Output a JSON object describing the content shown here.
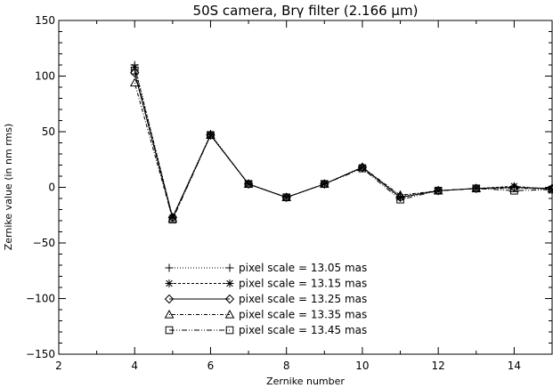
{
  "chart_data": {
    "type": "line",
    "title": "50S camera, Brγ filter (2.166 μm)",
    "xlabel": "Zernike number",
    "ylabel": "Zernike value (in nm rms)",
    "xlim": [
      2,
      15
    ],
    "ylim": [
      -150,
      150
    ],
    "xticks": [
      2,
      4,
      6,
      8,
      10,
      12,
      14
    ],
    "yticks": [
      -150,
      -100,
      -50,
      0,
      50,
      100,
      150
    ],
    "legend_position": "bottom-center",
    "grid": false,
    "x": [
      4,
      5,
      6,
      7,
      8,
      9,
      10,
      11,
      12,
      13,
      14,
      15
    ],
    "series": [
      {
        "name": "pixel scale = 13.05 mas",
        "marker": "plus",
        "dash": "1,2",
        "values": [
          110,
          -27,
          48,
          3,
          -9,
          3,
          18,
          -8,
          -3,
          -1,
          0,
          -2
        ]
      },
      {
        "name": "pixel scale = 13.15 mas",
        "marker": "asterisk",
        "dash": "3,2",
        "values": [
          108,
          -27,
          47,
          3,
          -9,
          3,
          18,
          -9,
          -3,
          -1,
          1,
          -2
        ]
      },
      {
        "name": "pixel scale = 13.25 mas",
        "marker": "diamond",
        "dash": "",
        "values": [
          103,
          -27,
          47,
          3,
          -9,
          3,
          18,
          -9,
          -3,
          -1,
          0,
          -1
        ]
      },
      {
        "name": "pixel scale = 13.35 mas",
        "marker": "triangle",
        "dash": "1,2,4,2",
        "values": [
          94,
          -28,
          47,
          3,
          -9,
          3,
          18,
          -7,
          -3,
          -1,
          -1,
          -1
        ]
      },
      {
        "name": "pixel scale = 13.45 mas",
        "marker": "square",
        "dash": "6,2,1,2,1,2",
        "values": [
          105,
          -29,
          47,
          3,
          -9,
          3,
          17,
          -11,
          -3,
          -1,
          -3,
          -2
        ]
      }
    ]
  }
}
